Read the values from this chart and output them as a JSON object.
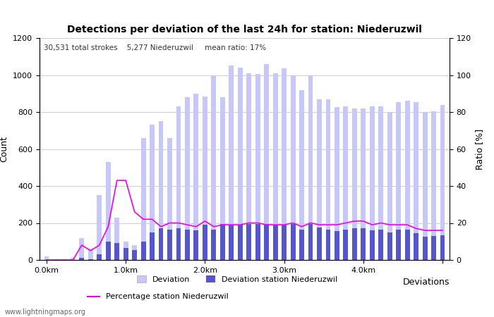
{
  "title": "Detections per deviation of the last 24h for station: Niederuzwil",
  "subtitle": "30,531 total strokes    5,277 Niederuzwil     mean ratio: 17%",
  "xlabel": "Deviations",
  "ylabel_left": "Count",
  "ylabel_right": "Ratio [%]",
  "watermark": "www.lightningmaps.org",
  "ylim_left": [
    0,
    1200
  ],
  "ylim_right": [
    0,
    120
  ],
  "xtick_positions": [
    0,
    9,
    18,
    27,
    36,
    45
  ],
  "xtick_labels": [
    "0.0km",
    "1.0km",
    "2.0km",
    "3.0km",
    "4.0km",
    ""
  ],
  "ytick_left": [
    0,
    200,
    400,
    600,
    800,
    1000,
    1200
  ],
  "ytick_right": [
    0,
    20,
    40,
    60,
    80,
    100,
    120
  ],
  "bar_color_total": "#c8c8f8",
  "bar_color_station": "#5555cc",
  "line_color": "#ee00ee",
  "grid_color": "#bbbbbb",
  "deviation_total": [
    20,
    5,
    5,
    10,
    120,
    60,
    350,
    530,
    230,
    100,
    80,
    660,
    730,
    750,
    660,
    830,
    880,
    900,
    885,
    1000,
    880,
    1050,
    1040,
    1010,
    1005,
    1060,
    1010,
    1035,
    1000,
    920,
    1000,
    870,
    870,
    825,
    830,
    820,
    820,
    830,
    830,
    800,
    855,
    860,
    855,
    800,
    805,
    840
  ],
  "deviation_station": [
    0,
    0,
    0,
    0,
    10,
    5,
    30,
    100,
    90,
    65,
    55,
    100,
    150,
    170,
    165,
    170,
    165,
    160,
    190,
    165,
    195,
    190,
    190,
    195,
    195,
    195,
    190,
    190,
    195,
    165,
    195,
    175,
    165,
    155,
    165,
    170,
    170,
    160,
    165,
    150,
    165,
    165,
    145,
    125,
    130,
    135
  ],
  "ratio_pct": [
    0,
    0,
    0,
    0,
    8,
    5,
    8,
    18,
    43,
    43,
    26,
    22,
    22,
    18,
    20,
    20,
    19,
    18,
    21,
    18,
    19,
    19,
    19,
    20,
    20,
    19,
    19,
    19,
    20,
    18,
    20,
    19,
    19,
    19,
    20,
    21,
    21,
    19,
    20,
    19,
    19,
    19,
    17,
    16,
    16,
    16
  ],
  "legend_items": [
    "Deviation",
    "Deviation station Niederuzwil",
    "Percentage station Niederuzwil"
  ]
}
